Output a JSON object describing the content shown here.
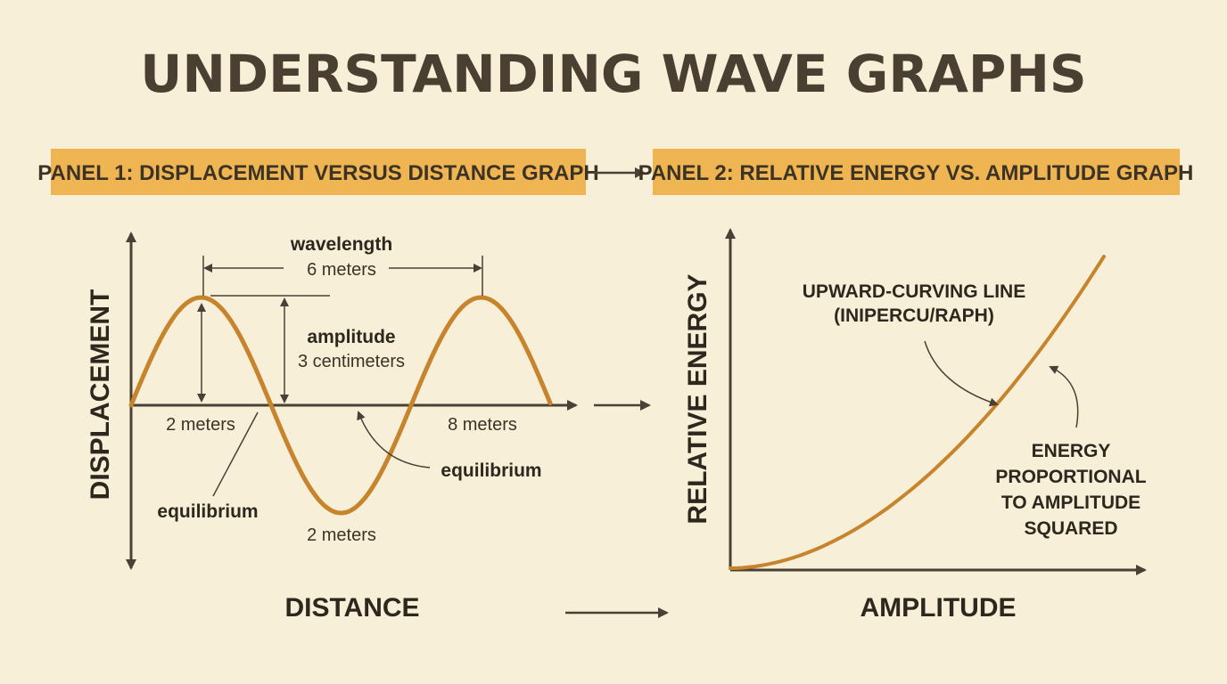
{
  "title": "UNDERSTANDING WAVE GRAPHS",
  "panel1": {
    "header": "PANEL 1: DISPLACEMENT VERSUS DISTANCE GRAPH",
    "y_axis_label": "DISPLACEMENT",
    "x_axis_label": "DISTANCE",
    "labels": {
      "wavelength_title": "wavelength",
      "wavelength_value": "6 meters",
      "amplitude_title": "amplitude",
      "amplitude_value": "3 centimeters",
      "distance_left": "2 meters",
      "distance_right": "8 meters",
      "trough_distance": "2 meters",
      "equilibrium_left": "equilibrium",
      "equilibrium_right": "equilibrium"
    }
  },
  "panel2": {
    "header": "PANEL 2: RELATIVE ENERGY VS. AMPLITUDE GRAPH",
    "y_axis_label": "RELATIVE ENERGY",
    "x_axis_label": "AMPLITUDE",
    "curve_annotation": [
      "UPWARD-CURVING LINE",
      "(INIPERCU/RAPH)"
    ],
    "energy_annotation": [
      "ENERGY",
      "PROPORTIONAL",
      "TO AMPLITUDE",
      "SQUARED"
    ]
  },
  "colors": {
    "background": "#f7efd8",
    "header_fill": "#f0b553",
    "curve": "#c8842c",
    "axis": "#4a4035",
    "text": "#3d3325"
  }
}
